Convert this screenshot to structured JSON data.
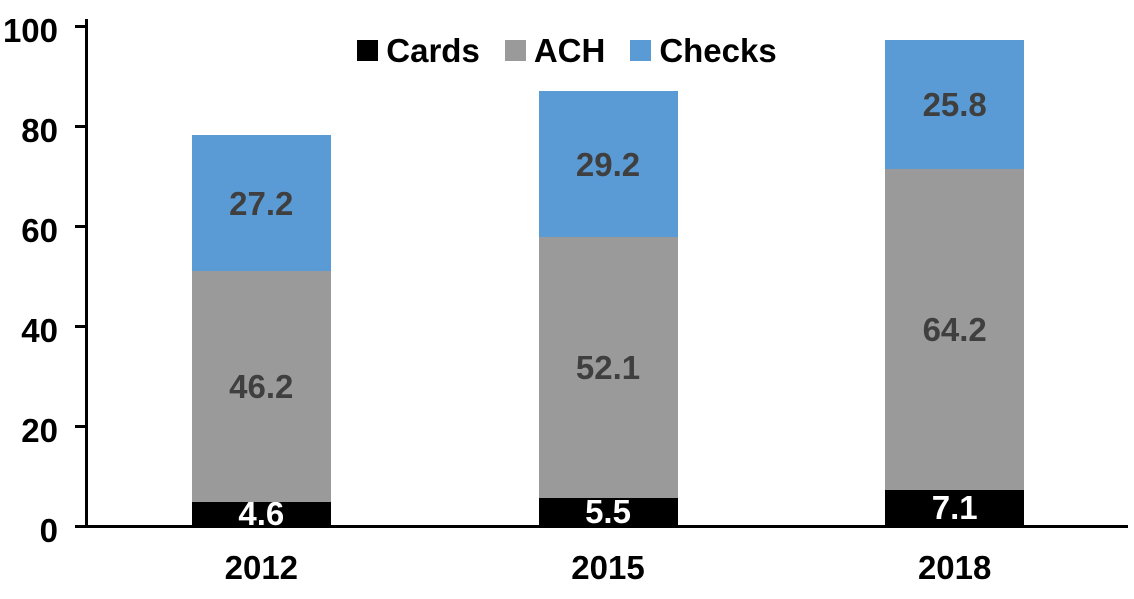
{
  "chart_data": {
    "type": "bar",
    "stacked": true,
    "title": "",
    "categories": [
      "2012",
      "2015",
      "2018"
    ],
    "series": [
      {
        "name": "Cards",
        "color": "#000000",
        "label_color": "#ffffff",
        "values": [
          4.6,
          5.5,
          7.1
        ]
      },
      {
        "name": "ACH",
        "color": "#9a9a9a",
        "label_color": "#3f3f3f",
        "values": [
          46.2,
          52.1,
          64.2
        ]
      },
      {
        "name": "Checks",
        "color": "#5b9bd5",
        "label_color": "#3f3f3f",
        "values": [
          27.2,
          29.2,
          25.8
        ]
      }
    ],
    "xlabel": "",
    "ylabel": "",
    "ylim": [
      0,
      100
    ],
    "yticks": [
      0,
      20,
      40,
      60,
      80,
      100
    ],
    "grid": false,
    "legend_position": "top-center",
    "axis_color": "#000000",
    "background_color": "#ffffff",
    "data_labels_visible": true
  }
}
